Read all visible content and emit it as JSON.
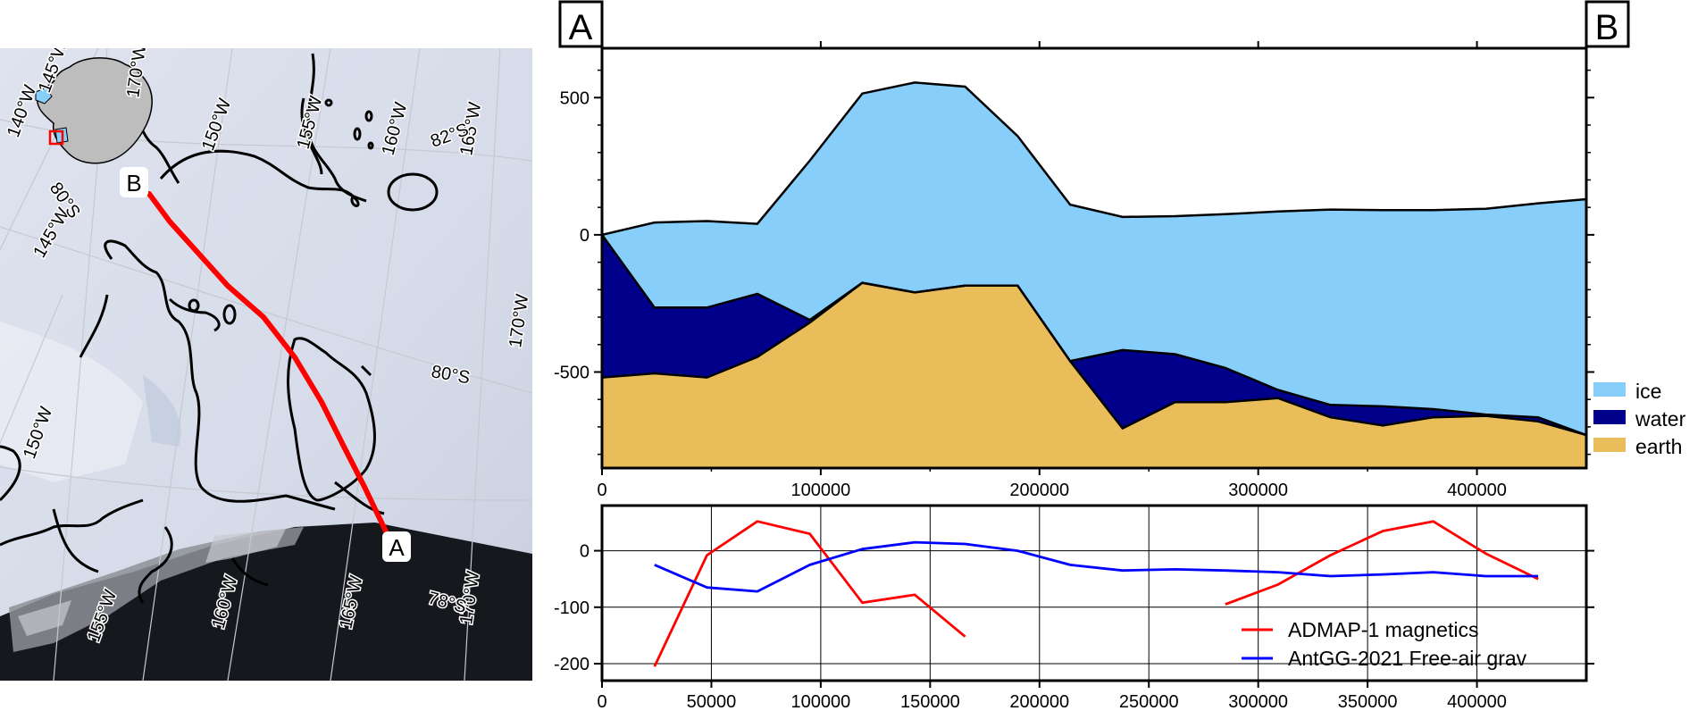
{
  "map": {
    "profile_start_label": "A",
    "profile_end_label": "B",
    "longitude_labels": [
      "140°W",
      "145°W",
      "145°W",
      "150°W",
      "150°W",
      "155°W",
      "155°W",
      "160°W",
      "160°W",
      "165°W",
      "165°W",
      "170°W",
      "170°W",
      "170°W"
    ],
    "latitude_labels": [
      "80°S",
      "80°S",
      "82°S",
      "78°S"
    ],
    "colors": {
      "profile_line": "#ff0000",
      "ocean": "#111418",
      "inset_land": "#bdbdbd"
    }
  },
  "chart_data": [
    {
      "type": "area",
      "corner_labels": {
        "left": "A",
        "right": "B"
      },
      "xlim": [
        0,
        450000
      ],
      "ylim": [
        -850,
        680
      ],
      "x_ticks": [
        0,
        100000,
        200000,
        300000,
        400000
      ],
      "y_ticks": [
        500,
        0,
        -500
      ],
      "layers": [
        {
          "name": "ice",
          "color": "#87cefa",
          "x": [
            0,
            24000,
            48000,
            71000,
            95000,
            119000,
            143000,
            166000,
            190000,
            214000,
            238000,
            262000,
            285000,
            309000,
            333000,
            357000,
            380000,
            404000,
            428000,
            450000
          ],
          "top": [
            0,
            45,
            50,
            40,
            270,
            515,
            555,
            540,
            360,
            110,
            65,
            68,
            75,
            85,
            92,
            90,
            90,
            95,
            115,
            130
          ],
          "bottom": [
            0,
            -265,
            -265,
            -215,
            -310,
            -175,
            -210,
            -185,
            -185,
            -460,
            -420,
            -435,
            -485,
            -565,
            -620,
            -625,
            -635,
            -655,
            -665,
            -730
          ]
        },
        {
          "name": "water",
          "color": "#00008b",
          "x": [
            0,
            24000,
            48000,
            71000,
            95000,
            119000,
            143000,
            166000,
            190000,
            214000,
            238000,
            262000,
            285000,
            309000,
            333000,
            357000,
            380000,
            404000,
            428000,
            450000
          ],
          "top": [
            0,
            -265,
            -265,
            -215,
            -310,
            -175,
            -210,
            -185,
            -185,
            -460,
            -420,
            -435,
            -485,
            -565,
            -620,
            -625,
            -635,
            -655,
            -665,
            -730
          ],
          "bottom": [
            -520,
            -505,
            -520,
            -445,
            -320,
            -175,
            -210,
            -185,
            -185,
            -460,
            -705,
            -610,
            -610,
            -595,
            -665,
            -695,
            -665,
            -660,
            -680,
            -730
          ]
        },
        {
          "name": "earth",
          "color": "#e9be5a",
          "x": [
            0,
            24000,
            48000,
            71000,
            95000,
            119000,
            143000,
            166000,
            190000,
            214000,
            238000,
            262000,
            285000,
            309000,
            333000,
            357000,
            380000,
            404000,
            428000,
            450000
          ],
          "top": [
            -520,
            -505,
            -520,
            -445,
            -320,
            -175,
            -210,
            -185,
            -185,
            -460,
            -705,
            -610,
            -610,
            -595,
            -665,
            -695,
            -665,
            -660,
            -680,
            -730
          ],
          "bottom": [
            -850,
            -850,
            -850,
            -850,
            -850,
            -850,
            -850,
            -850,
            -850,
            -850,
            -850,
            -850,
            -850,
            -850,
            -850,
            -850,
            -850,
            -850,
            -850,
            -850
          ]
        }
      ],
      "legend": [
        "ice",
        "water",
        "earth"
      ],
      "legend_position": "right"
    },
    {
      "type": "line",
      "xlim": [
        0,
        450000
      ],
      "ylim": [
        -230,
        80
      ],
      "x_ticks": [
        0,
        50000,
        100000,
        150000,
        200000,
        250000,
        300000,
        350000,
        400000
      ],
      "y_ticks": [
        0,
        -100,
        -200
      ],
      "grid": true,
      "series": [
        {
          "name": "ADMAP-1 magnetics",
          "color": "#ff0000",
          "segments": [
            {
              "x": [
                24000,
                48000,
                71000,
                95000,
                119000,
                143000,
                166000
              ],
              "y": [
                -205,
                -8,
                52,
                30,
                -92,
                -78,
                -152
              ]
            },
            {
              "x": [
                285000,
                309000,
                333000,
                357000,
                380000,
                404000,
                428000
              ],
              "y": [
                -95,
                -60,
                -8,
                35,
                52,
                -5,
                -50
              ]
            }
          ]
        },
        {
          "name": "AntGG-2021 Free-air grav",
          "color": "#0000ff",
          "segments": [
            {
              "x": [
                24000,
                48000,
                71000,
                95000,
                119000,
                143000,
                166000,
                190000,
                214000,
                238000,
                262000,
                285000,
                309000,
                333000,
                357000,
                380000,
                404000,
                428000
              ],
              "y": [
                -25,
                -65,
                -72,
                -25,
                3,
                15,
                12,
                0,
                -25,
                -35,
                -33,
                -35,
                -38,
                -45,
                -42,
                -38,
                -45,
                -45
              ]
            }
          ]
        }
      ],
      "legend": [
        "ADMAP-1 magnetics",
        "AntGG-2021 Free-air grav"
      ],
      "legend_position": "bottom-right"
    }
  ]
}
